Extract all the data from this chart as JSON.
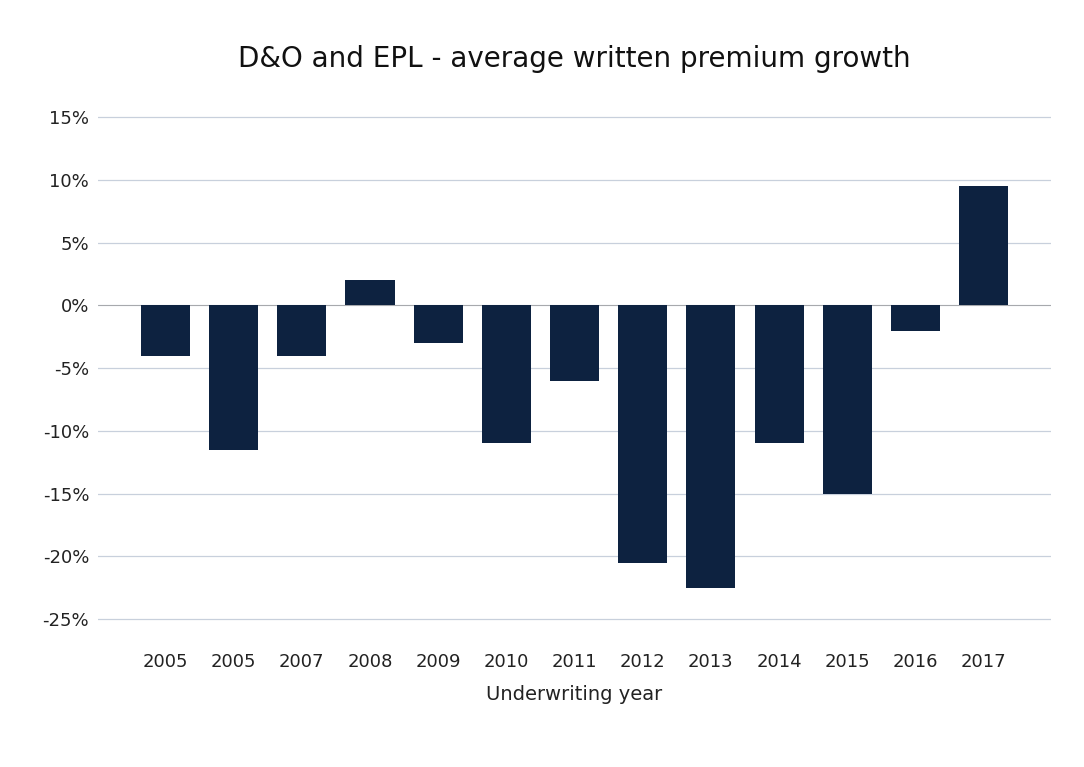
{
  "categories": [
    "2005",
    "2005",
    "2007",
    "2008",
    "2009",
    "2010",
    "2011",
    "2012",
    "2013",
    "2014",
    "2015",
    "2016",
    "2017"
  ],
  "values": [
    -4.0,
    -11.5,
    -4.0,
    2.0,
    -3.0,
    -11.0,
    -6.0,
    -20.5,
    -22.5,
    -11.0,
    -15.0,
    -2.0,
    9.5
  ],
  "bar_color": "#0d2240",
  "title": "D&O and EPL - average written premium growth",
  "xlabel": "Underwriting year",
  "ylim": [
    -27,
    17
  ],
  "yticks": [
    -25,
    -20,
    -15,
    -10,
    -5,
    0,
    5,
    10,
    15
  ],
  "ytick_labels": [
    "-25%",
    "-20%",
    "-15%",
    "-10%",
    "-5%",
    "0%",
    "5%",
    "10%",
    "15%"
  ],
  "background_color": "#ffffff",
  "grid_color": "#c8d0dc",
  "title_fontsize": 20,
  "tick_fontsize": 13,
  "xlabel_fontsize": 14,
  "bar_width": 0.72
}
